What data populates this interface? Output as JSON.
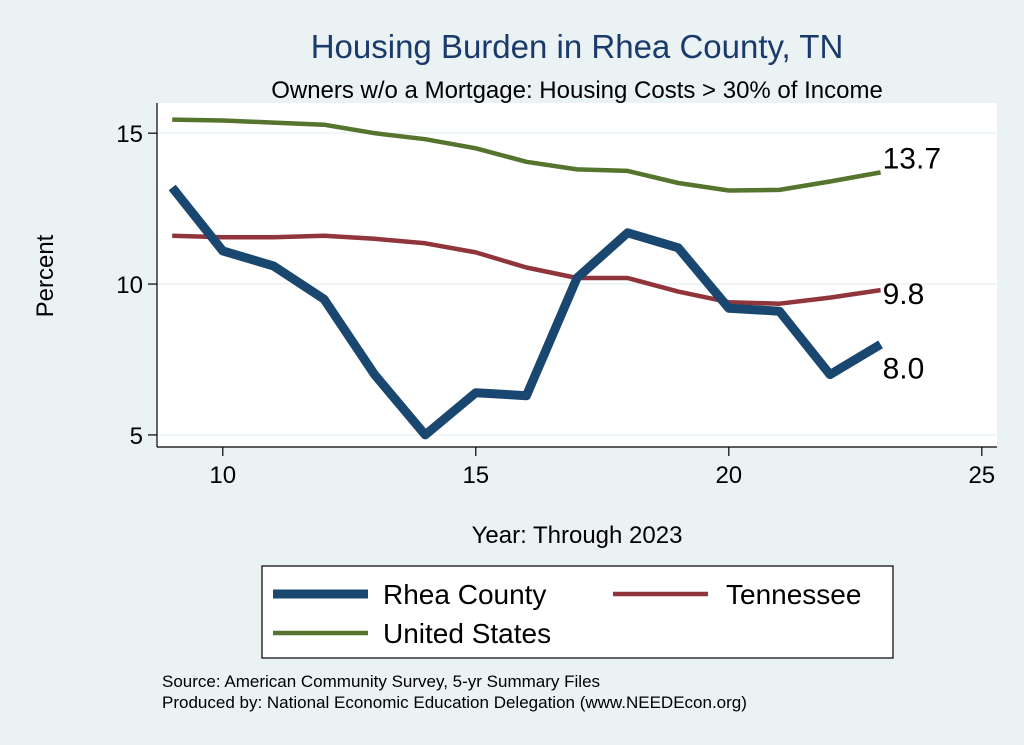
{
  "chart_data": {
    "type": "line",
    "title": "Housing Burden in Rhea County, TN",
    "subtitle": "Owners w/o a Mortgage: Housing Costs > 30% of Income",
    "xlabel": "Year: Through 2023",
    "ylabel": "Percent",
    "xlim": [
      8.7,
      25.3
    ],
    "ylim": [
      4.6,
      16.0
    ],
    "xticks": [
      10,
      15,
      20,
      25
    ],
    "yticks": [
      5,
      10,
      15
    ],
    "grid": true,
    "x": [
      9,
      10,
      11,
      12,
      13,
      14,
      15,
      16,
      17,
      18,
      19,
      20,
      21,
      22,
      23
    ],
    "series": [
      {
        "name": "Rhea County",
        "color": "#1a476f",
        "values": [
          13.2,
          11.1,
          10.6,
          9.5,
          7.0,
          5.0,
          6.4,
          6.3,
          10.2,
          11.7,
          11.2,
          9.2,
          9.1,
          7.0,
          8.0
        ],
        "end_label": "8.0"
      },
      {
        "name": "Tennessee",
        "color": "#90353b",
        "values": [
          11.6,
          11.55,
          11.55,
          11.6,
          11.5,
          11.35,
          11.05,
          10.55,
          10.2,
          10.2,
          9.75,
          9.4,
          9.35,
          9.55,
          9.8
        ],
        "end_label": "9.8"
      },
      {
        "name": "United States",
        "color": "#55752f",
        "values": [
          15.45,
          15.42,
          15.35,
          15.28,
          15.0,
          14.8,
          14.5,
          14.05,
          13.8,
          13.75,
          13.35,
          13.1,
          13.12,
          13.4,
          13.7
        ],
        "end_label": "13.7"
      }
    ],
    "legend": {
      "position": "bottom",
      "entries": [
        "Rhea County",
        "Tennessee",
        "United States"
      ]
    }
  },
  "notes": {
    "source": "Source: American Community Survey, 5-yr Summary Files",
    "produced_by": "Produced by: National Economic Education Delegation (www.NEEDEcon.org)"
  }
}
